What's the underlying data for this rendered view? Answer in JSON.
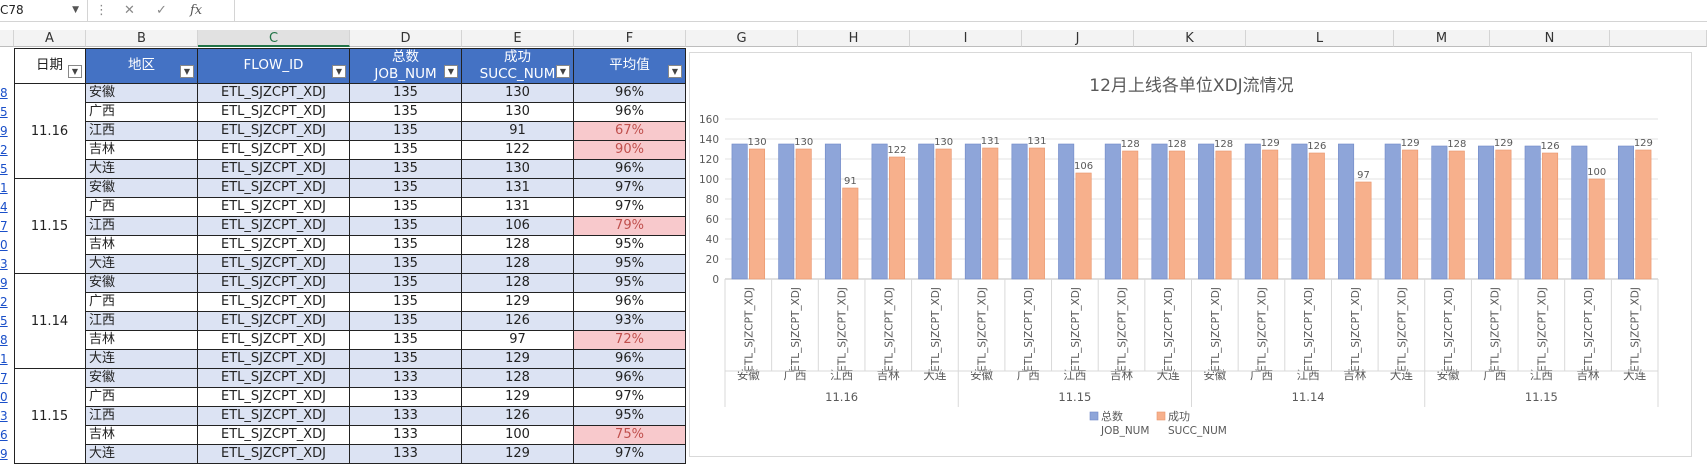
{
  "formula_bar": {
    "name_box": "C78",
    "fx_label": "fx",
    "formula": ""
  },
  "columns": [
    "A",
    "B",
    "C",
    "D",
    "E",
    "F",
    "G",
    "H",
    "I",
    "J",
    "K",
    "L",
    "M",
    "N"
  ],
  "selected_column": "C",
  "row_numbers": [
    "8",
    "5",
    "9",
    "2",
    "5",
    "1",
    "4",
    "7",
    "0",
    "3",
    "9",
    "2",
    "5",
    "8",
    "1",
    "7",
    "0",
    "3",
    "6",
    "9"
  ],
  "table": {
    "headers": {
      "date": "日期",
      "region": "地区",
      "flow_id": "FLOW_ID",
      "total_line1": "总数",
      "total_line2": "JOB_NUM",
      "succ_line1": "成功",
      "succ_line2": "SUCC_NUM",
      "avg": "平均值"
    },
    "groups": [
      {
        "date": "11.16",
        "rows": [
          {
            "region": "安徽",
            "flow": "ETL_SJZCPT_XDJ",
            "total": "135",
            "succ": "130",
            "avg": "96%",
            "bad": false
          },
          {
            "region": "广西",
            "flow": "ETL_SJZCPT_XDJ",
            "total": "135",
            "succ": "130",
            "avg": "96%",
            "bad": false
          },
          {
            "region": "江西",
            "flow": "ETL_SJZCPT_XDJ",
            "total": "135",
            "succ": "91",
            "avg": "67%",
            "bad": true
          },
          {
            "region": "吉林",
            "flow": "ETL_SJZCPT_XDJ",
            "total": "135",
            "succ": "122",
            "avg": "90%",
            "bad": true
          },
          {
            "region": "大连",
            "flow": "ETL_SJZCPT_XDJ",
            "total": "135",
            "succ": "130",
            "avg": "96%",
            "bad": false
          }
        ]
      },
      {
        "date": "11.15",
        "rows": [
          {
            "region": "安徽",
            "flow": "ETL_SJZCPT_XDJ",
            "total": "135",
            "succ": "131",
            "avg": "97%",
            "bad": false
          },
          {
            "region": "广西",
            "flow": "ETL_SJZCPT_XDJ",
            "total": "135",
            "succ": "131",
            "avg": "97%",
            "bad": false
          },
          {
            "region": "江西",
            "flow": "ETL_SJZCPT_XDJ",
            "total": "135",
            "succ": "106",
            "avg": "79%",
            "bad": true
          },
          {
            "region": "吉林",
            "flow": "ETL_SJZCPT_XDJ",
            "total": "135",
            "succ": "128",
            "avg": "95%",
            "bad": false
          },
          {
            "region": "大连",
            "flow": "ETL_SJZCPT_XDJ",
            "total": "135",
            "succ": "128",
            "avg": "95%",
            "bad": false
          }
        ]
      },
      {
        "date": "11.14",
        "rows": [
          {
            "region": "安徽",
            "flow": "ETL_SJZCPT_XDJ",
            "total": "135",
            "succ": "128",
            "avg": "95%",
            "bad": false
          },
          {
            "region": "广西",
            "flow": "ETL_SJZCPT_XDJ",
            "total": "135",
            "succ": "129",
            "avg": "96%",
            "bad": false
          },
          {
            "region": "江西",
            "flow": "ETL_SJZCPT_XDJ",
            "total": "135",
            "succ": "126",
            "avg": "93%",
            "bad": false
          },
          {
            "region": "吉林",
            "flow": "ETL_SJZCPT_XDJ",
            "total": "135",
            "succ": "97",
            "avg": "72%",
            "bad": true
          },
          {
            "region": "大连",
            "flow": "ETL_SJZCPT_XDJ",
            "total": "135",
            "succ": "129",
            "avg": "96%",
            "bad": false
          }
        ]
      },
      {
        "date": "11.15",
        "rows": [
          {
            "region": "安徽",
            "flow": "ETL_SJZCPT_XDJ",
            "total": "133",
            "succ": "128",
            "avg": "96%",
            "bad": false
          },
          {
            "region": "广西",
            "flow": "ETL_SJZCPT_XDJ",
            "total": "133",
            "succ": "129",
            "avg": "97%",
            "bad": false
          },
          {
            "region": "江西",
            "flow": "ETL_SJZCPT_XDJ",
            "total": "133",
            "succ": "126",
            "avg": "95%",
            "bad": false
          },
          {
            "region": "吉林",
            "flow": "ETL_SJZCPT_XDJ",
            "total": "133",
            "succ": "100",
            "avg": "75%",
            "bad": true
          },
          {
            "region": "大连",
            "flow": "ETL_SJZCPT_XDJ",
            "total": "133",
            "succ": "129",
            "avg": "97%",
            "bad": false
          }
        ]
      }
    ]
  },
  "colors": {
    "header_blue": "#4472c4",
    "series_total": "#8ea5d9",
    "series_succ": "#f7b08c",
    "bad_fill": "#f8c9cc",
    "bad_text": "#c0504d"
  },
  "chart_data": {
    "type": "bar",
    "title": "12月上线各单位XDJ流情况",
    "categories": [
      "安徽",
      "广西",
      "江西",
      "吉林",
      "大连",
      "安徽",
      "广西",
      "江西",
      "吉林",
      "大连",
      "安徽",
      "广西",
      "江西",
      "吉林",
      "大连",
      "安徽",
      "广西",
      "江西",
      "吉林",
      "大连"
    ],
    "category_sublabel": "ETL_SJZCPT_XDJ",
    "groups": [
      "11.16",
      "11.15",
      "11.14",
      "11.15"
    ],
    "series": [
      {
        "name": "总数 JOB_NUM",
        "name_line1": "总数",
        "name_line2": "JOB_NUM",
        "values": [
          135,
          135,
          135,
          135,
          135,
          135,
          135,
          135,
          135,
          135,
          135,
          135,
          135,
          135,
          135,
          133,
          133,
          133,
          133,
          133
        ]
      },
      {
        "name": "成功 SUCC_NUM",
        "name_line1": "成功",
        "name_line2": "SUCC_NUM",
        "values": [
          130,
          130,
          91,
          122,
          130,
          131,
          131,
          106,
          128,
          128,
          128,
          129,
          126,
          97,
          129,
          128,
          129,
          126,
          100,
          129
        ]
      }
    ],
    "ylim": [
      0,
      160
    ],
    "yticks": [
      "0",
      "20",
      "40",
      "60",
      "80",
      "100",
      "120",
      "140",
      "160"
    ],
    "grid": true,
    "legend": "bottom",
    "data_labels_series": "成功 SUCC_NUM"
  }
}
